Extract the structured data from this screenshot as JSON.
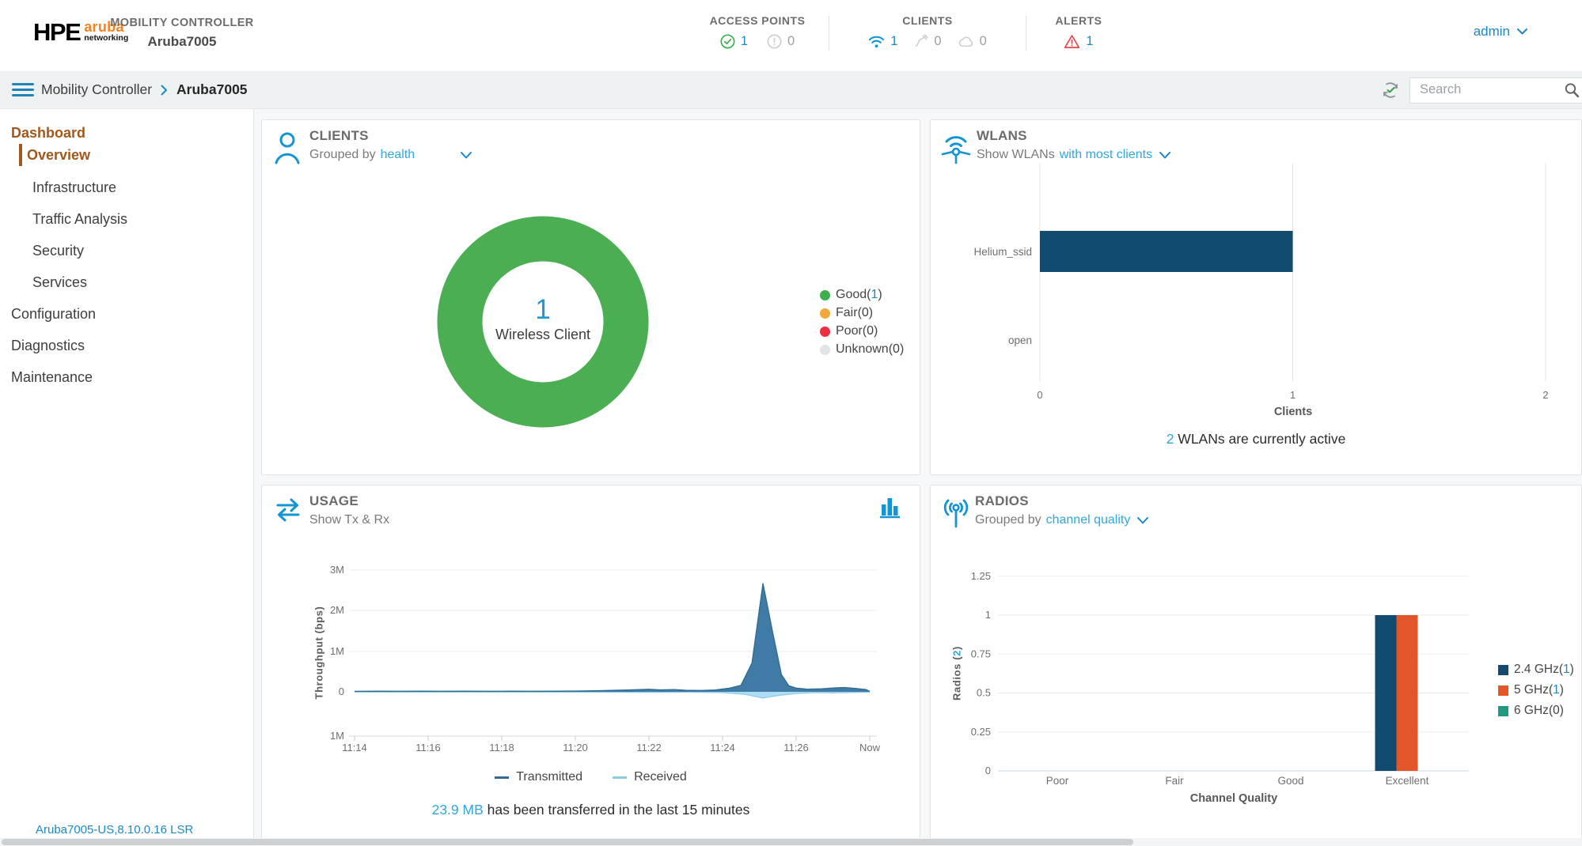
{
  "header": {
    "logo": {
      "hpe": "HPE",
      "aruba": "aruba",
      "networking": "networking"
    },
    "title_label": "MOBILITY CONTROLLER",
    "title_name": "Aruba7005",
    "stats": [
      {
        "label": "ACCESS POINTS",
        "items": [
          {
            "icon": "check-circle",
            "value": "1"
          },
          {
            "icon": "exclaim-circle",
            "value": "0"
          }
        ]
      },
      {
        "label": "CLIENTS",
        "items": [
          {
            "icon": "wifi",
            "value": "1"
          },
          {
            "icon": "wired-client",
            "value": "0"
          },
          {
            "icon": "cloud",
            "value": "0"
          }
        ]
      },
      {
        "label": "ALERTS",
        "items": [
          {
            "icon": "warning-triangle",
            "value": "1"
          }
        ]
      }
    ],
    "user_menu": "admin"
  },
  "breadcrumb": {
    "root": "Mobility Controller",
    "current": "Aruba7005",
    "search_placeholder": "Search"
  },
  "sidebar": {
    "items": [
      {
        "label": "Dashboard"
      },
      {
        "label": "Overview"
      },
      {
        "label": "Infrastructure"
      },
      {
        "label": "Traffic Analysis"
      },
      {
        "label": "Security"
      },
      {
        "label": "Services"
      },
      {
        "label": "Configuration"
      },
      {
        "label": "Diagnostics"
      },
      {
        "label": "Maintenance"
      }
    ],
    "footer": "Aruba7005-US,8.10.0.16 LSR"
  },
  "panels": {
    "clients": {
      "title": "CLIENTS",
      "subtitle_prefix": "Grouped by",
      "subtitle_link": "health"
    },
    "wlans": {
      "title": "WLANS",
      "subtitle_prefix": "Show WLANs",
      "subtitle_link": "with most clients"
    },
    "usage": {
      "title": "USAGE",
      "subtitle": "Show Tx & Rx"
    },
    "radios": {
      "title": "RADIOS",
      "subtitle_prefix": "Grouped by",
      "subtitle_link": "channel quality"
    }
  },
  "chart_data": [
    {
      "id": "clients_donut",
      "type": "pie",
      "center_value": "1",
      "center_label": "Wireless Client",
      "segments": [
        {
          "label": "Good",
          "value": 1,
          "color": "#3faf4e"
        },
        {
          "label": "Fair",
          "value": 0,
          "color": "#f2a93b"
        },
        {
          "label": "Poor",
          "value": 0,
          "color": "#ee2e41"
        },
        {
          "label": "Unknown",
          "value": 0,
          "color": "#e1e4e7"
        }
      ],
      "ring_color": "#4cae52"
    },
    {
      "id": "wlans_clients",
      "type": "bar",
      "orientation": "horizontal",
      "categories": [
        "Helium_ssid",
        "open"
      ],
      "values": [
        1,
        0
      ],
      "bar_color": "#134a70",
      "xlabel": "Clients",
      "xticks": [
        0,
        1,
        2
      ],
      "xlim": [
        0,
        2
      ],
      "note_value": "2",
      "note_text": "WLANs are currently active"
    },
    {
      "id": "usage",
      "type": "area",
      "ylabel": "Throughput (bps)",
      "yticks": [
        "3M",
        "2M",
        "1M",
        "0",
        "1M"
      ],
      "ylim_bps": [
        -1000000,
        3000000
      ],
      "x_ticks": [
        "11:14",
        "11:16",
        "11:18",
        "11:20",
        "11:22",
        "11:24",
        "11:26",
        "Now"
      ],
      "x_range_minutes": [
        0,
        14
      ],
      "series": [
        {
          "name": "Transmitted",
          "color": "#3f7ba4",
          "line_color": "#2e6b95",
          "direction": "up",
          "points": [
            [
              0,
              12000
            ],
            [
              0.6,
              16000
            ],
            [
              1.2,
              13000
            ],
            [
              1.8,
              17000
            ],
            [
              2.4,
              13000
            ],
            [
              3,
              16000
            ],
            [
              3.6,
              13000
            ],
            [
              4.2,
              16000
            ],
            [
              4.8,
              14000
            ],
            [
              5.4,
              17000
            ],
            [
              6,
              20000
            ],
            [
              6.5,
              26000
            ],
            [
              7,
              34000
            ],
            [
              7.5,
              48000
            ],
            [
              8,
              62000
            ],
            [
              8.3,
              48000
            ],
            [
              8.7,
              56000
            ],
            [
              9,
              38000
            ],
            [
              9.4,
              32000
            ],
            [
              9.8,
              44000
            ],
            [
              10.2,
              90000
            ],
            [
              10.5,
              160000
            ],
            [
              10.8,
              700000
            ],
            [
              11.1,
              2640000
            ],
            [
              11.35,
              1500000
            ],
            [
              11.6,
              420000
            ],
            [
              11.8,
              150000
            ],
            [
              12,
              90000
            ],
            [
              12.3,
              65000
            ],
            [
              12.7,
              75000
            ],
            [
              13,
              95000
            ],
            [
              13.3,
              105000
            ],
            [
              13.6,
              85000
            ],
            [
              13.9,
              55000
            ],
            [
              14,
              8000
            ]
          ]
        },
        {
          "name": "Received",
          "color": "#aedcf2",
          "line_color": "#8fcceb",
          "direction": "down",
          "points": [
            [
              0,
              6000
            ],
            [
              1,
              7000
            ],
            [
              2,
              6000
            ],
            [
              3,
              7000
            ],
            [
              4,
              6000
            ],
            [
              5,
              7000
            ],
            [
              6,
              8000
            ],
            [
              7,
              10000
            ],
            [
              8,
              12000
            ],
            [
              9,
              10000
            ],
            [
              10,
              20000
            ],
            [
              10.6,
              60000
            ],
            [
              11.1,
              150000
            ],
            [
              11.5,
              90000
            ],
            [
              12,
              40000
            ],
            [
              12.5,
              20000
            ],
            [
              13,
              25000
            ],
            [
              13.5,
              15000
            ],
            [
              14,
              6000
            ]
          ]
        }
      ],
      "note_value": "23.9 MB",
      "note_text": "has been transferred in the last 15 minutes"
    },
    {
      "id": "radios",
      "type": "bar",
      "orientation": "vertical",
      "categories": [
        "Poor",
        "Fair",
        "Good",
        "Excellent"
      ],
      "series": [
        {
          "name": "2.4 GHz",
          "count": 1,
          "color": "#134a70",
          "values": [
            0,
            0,
            0,
            1
          ]
        },
        {
          "name": "5 GHz",
          "count": 1,
          "color": "#e2562a",
          "values": [
            0,
            0,
            0,
            1
          ]
        },
        {
          "name": "6 GHz",
          "count": 0,
          "color": "#1d9a80",
          "values": [
            0,
            0,
            0,
            0
          ]
        }
      ],
      "ylabel": "Radios",
      "ylabel_count": "2",
      "yticks": [
        0,
        0.25,
        0.5,
        0.75,
        1,
        1.25
      ],
      "xlabel": "Channel Quality"
    }
  ]
}
